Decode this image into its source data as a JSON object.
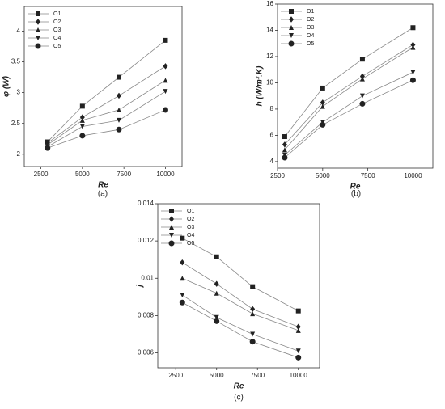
{
  "chart_data": [
    {
      "type": "line",
      "panel": "(a)",
      "x_label": "Re",
      "y_label": "φ (W)",
      "xlim": [
        1500,
        11000
      ],
      "xticks": [
        2500,
        5000,
        7500,
        10000
      ],
      "ylim": [
        1.8,
        4.4
      ],
      "yticks": [
        2,
        2.5,
        3,
        3.5,
        4
      ],
      "x": [
        2900,
        5000,
        7200,
        10000
      ],
      "series": [
        {
          "name": "O1",
          "color": "#222222",
          "marker": "square",
          "values": [
            2.2,
            2.78,
            3.25,
            3.85
          ]
        },
        {
          "name": "O2",
          "color": "#222222",
          "marker": "diamond",
          "values": [
            2.18,
            2.6,
            2.95,
            3.43
          ]
        },
        {
          "name": "O3",
          "color": "#222222",
          "marker": "triangle-up",
          "values": [
            2.15,
            2.55,
            2.72,
            3.2
          ]
        },
        {
          "name": "O4",
          "color": "#222222",
          "marker": "triangle-down",
          "values": [
            2.12,
            2.45,
            2.55,
            3.02
          ]
        },
        {
          "name": "O5",
          "color": "#222222",
          "marker": "circle",
          "values": [
            2.1,
            2.3,
            2.4,
            2.72
          ]
        }
      ]
    },
    {
      "type": "line",
      "panel": "(b)",
      "x_label": "Re",
      "y_label": "h (W/m².K)",
      "xlim": [
        2500,
        11100
      ],
      "xticks": [
        2500,
        5000,
        7500,
        10000
      ],
      "ylim": [
        3.5,
        16
      ],
      "yticks": [
        4,
        6,
        8,
        10,
        12,
        14,
        16
      ],
      "x": [
        2900,
        5000,
        7200,
        10000
      ],
      "series": [
        {
          "name": "O1",
          "color": "#222222",
          "marker": "square",
          "values": [
            5.9,
            9.6,
            11.8,
            14.2
          ]
        },
        {
          "name": "O2",
          "color": "#222222",
          "marker": "diamond",
          "values": [
            5.3,
            8.5,
            10.5,
            12.9
          ]
        },
        {
          "name": "O3",
          "color": "#222222",
          "marker": "triangle-up",
          "values": [
            4.9,
            8.2,
            10.3,
            12.7
          ]
        },
        {
          "name": "O4",
          "color": "#222222",
          "marker": "triangle-down",
          "values": [
            4.5,
            7.0,
            9.0,
            10.8
          ]
        },
        {
          "name": "O5",
          "color": "#222222",
          "marker": "circle",
          "values": [
            4.3,
            6.8,
            8.4,
            10.2
          ]
        }
      ]
    },
    {
      "type": "line",
      "panel": "(c)",
      "x_label": "Re",
      "y_label": "j",
      "xlim": [
        1400,
        11300
      ],
      "xticks": [
        2500,
        5000,
        7500,
        10000
      ],
      "ylim": [
        0.0052,
        0.014
      ],
      "yticks": [
        0.006,
        0.008,
        0.01,
        0.012,
        0.014
      ],
      "x": [
        2900,
        5000,
        7200,
        10000
      ],
      "series": [
        {
          "name": "O1",
          "color": "#222222",
          "marker": "square",
          "values": [
            0.01215,
            0.01115,
            0.00955,
            0.00825
          ]
        },
        {
          "name": "O2",
          "color": "#222222",
          "marker": "diamond",
          "values": [
            0.01085,
            0.0097,
            0.00835,
            0.0074
          ]
        },
        {
          "name": "O3",
          "color": "#222222",
          "marker": "triangle-up",
          "values": [
            0.01,
            0.0092,
            0.0081,
            0.0072
          ]
        },
        {
          "name": "O4",
          "color": "#222222",
          "marker": "triangle-down",
          "values": [
            0.0091,
            0.0079,
            0.007,
            0.0061
          ]
        },
        {
          "name": "O5",
          "color": "#222222",
          "marker": "circle",
          "values": [
            0.0087,
            0.0077,
            0.0066,
            0.00575
          ]
        }
      ]
    }
  ]
}
